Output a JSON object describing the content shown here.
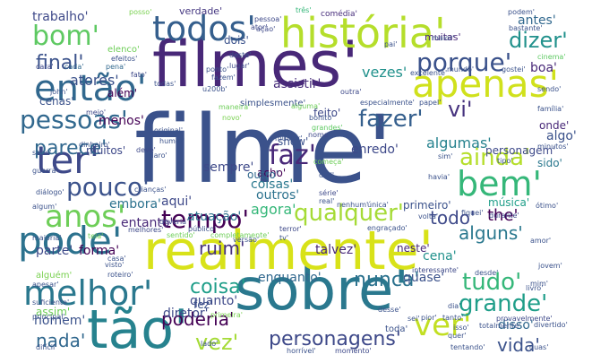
{
  "title": "",
  "words": [
    {
      "text": "filme'",
      "color": "#3b528b"
    },
    {
      "text": "filmes'",
      "color": "#482878"
    },
    {
      "text": "sobre'",
      "color": "#2a788e"
    },
    {
      "text": "realmente'",
      "color": "#d8e219"
    },
    {
      "text": "história'",
      "color": "#b5de2b"
    },
    {
      "text": "tão'",
      "color": "#26828e"
    },
    {
      "text": "apenas'",
      "color": "#d0e11c"
    },
    {
      "text": "então'",
      "color": "#31688e"
    },
    {
      "text": "pode'",
      "color": "#2c728e"
    },
    {
      "text": "ter'",
      "color": "#3e4989"
    },
    {
      "text": "todos'",
      "color": "#355f8d"
    },
    {
      "text": "bem'",
      "color": "#35b779"
    },
    {
      "text": "anos'",
      "color": "#6ece58"
    },
    {
      "text": "melhor'",
      "color": "#2a788e"
    },
    {
      "text": "pessoas'",
      "color": "#31688e"
    },
    {
      "text": "bom'",
      "color": "#5ec962"
    },
    {
      "text": "ver'",
      "color": "#c2df23"
    },
    {
      "text": "tempo'",
      "color": "#440154"
    },
    {
      "text": "qualquer'",
      "color": "#a5db36"
    },
    {
      "text": "porque'",
      "color": "#3b528b"
    },
    {
      "text": "dizer'",
      "color": "#21918c"
    },
    {
      "text": "grande'",
      "color": "#1f9e89"
    },
    {
      "text": "ainda'",
      "color": "#b5de2b"
    },
    {
      "text": "pouco'",
      "color": "#3b528b"
    },
    {
      "text": "parece'",
      "color": "#31688e"
    },
    {
      "text": "fazer'",
      "color": "#355f8d"
    },
    {
      "text": "personagens'",
      "color": "#3e4989"
    },
    {
      "text": "nunca'",
      "color": "#2c728e"
    },
    {
      "text": "tudo'",
      "color": "#35b779"
    },
    {
      "text": "coisa'",
      "color": "#1f9e89"
    },
    {
      "text": "vez'",
      "color": "#a5db36"
    },
    {
      "text": "vida'",
      "color": "#3b528b"
    },
    {
      "text": "final'",
      "color": "#3b528b"
    },
    {
      "text": "faz'",
      "color": "#482878"
    },
    {
      "text": "vi'",
      "color": "#46327e"
    },
    {
      "text": "alguns'",
      "color": "#2a788e"
    },
    {
      "text": "the'",
      "color": "#440154"
    },
    {
      "text": "todo'",
      "color": "#3e4989"
    },
    {
      "text": "poderia'",
      "color": "#440154"
    },
    {
      "text": "ruim'",
      "color": "#46327e"
    },
    {
      "text": "nada'",
      "color": "#31688e"
    },
    {
      "text": "antes'",
      "color": "#31688e"
    },
    {
      "text": "assistir'",
      "color": "#472d7b"
    },
    {
      "text": "vezes'",
      "color": "#21918c"
    },
    {
      "text": "algumas'",
      "color": "#26828e"
    },
    {
      "text": "menos'",
      "color": "#440154"
    },
    {
      "text": "atores'",
      "color": "#3b528b"
    },
    {
      "text": "trabalho'",
      "color": "#3e4989"
    },
    {
      "text": "muitas'",
      "color": "#482878"
    },
    {
      "text": "verdade'",
      "color": "#453781"
    },
    {
      "text": "sempre'",
      "color": "#3e4989"
    },
    {
      "text": "acho'",
      "color": "#440154"
    },
    {
      "text": "aqui'",
      "color": "#3e4989"
    },
    {
      "text": "embora'",
      "color": "#2c728e"
    },
    {
      "text": "agora'",
      "color": "#35b779"
    },
    {
      "text": "primeiro'",
      "color": "#3b528b"
    },
    {
      "text": "enredo'",
      "color": "#3e4989"
    },
    {
      "text": "coisas'",
      "color": "#2a788e"
    },
    {
      "text": "outros'",
      "color": "#2c728e"
    },
    {
      "text": "outro'",
      "color": "#31688e"
    },
    {
      "text": "atuação'",
      "color": "#2c728e"
    },
    {
      "text": "entanto'",
      "color": "#482878"
    },
    {
      "text": "parte'",
      "color": "#3e4989"
    },
    {
      "text": "forma'",
      "color": "#440154"
    },
    {
      "text": "talvez'",
      "color": "#482878"
    },
    {
      "text": "enquanto'",
      "color": "#31688e"
    },
    {
      "text": "quase'",
      "color": "#3b528b"
    },
    {
      "text": "cena'",
      "color": "#21918c"
    },
    {
      "text": "quanto'",
      "color": "#3e4989"
    },
    {
      "text": "diretor'",
      "color": "#3e4989"
    },
    {
      "text": "homem'",
      "color": "#3b528b"
    },
    {
      "text": "assim'",
      "color": "#6ece58"
    },
    {
      "text": "disso'",
      "color": "#31688e"
    },
    {
      "text": "música'",
      "color": "#1f9e89"
    },
    {
      "text": "personagem'",
      "color": "#3e4989"
    },
    {
      "text": "sido'",
      "color": "#2a788e"
    },
    {
      "text": "algo'",
      "color": "#3b528b"
    },
    {
      "text": "onde'",
      "color": "#482878"
    },
    {
      "text": "boa'",
      "color": "#482878"
    },
    {
      "text": "muitos'",
      "color": "#3e4989"
    },
    {
      "text": "dois'",
      "color": "#3b528b"
    },
    {
      "text": "além'",
      "color": "#440154"
    },
    {
      "text": "cenas'",
      "color": "#3b528b"
    },
    {
      "text": "show'",
      "color": "#3b528b"
    },
    {
      "text": "feito'",
      "color": "#3e4989"
    },
    {
      "text": "neste'",
      "color": "#482878"
    },
    {
      "text": "posso'",
      "color": "#7ad151"
    },
    {
      "text": "comédia'",
      "color": "#472d7b"
    },
    {
      "text": "podem'",
      "color": "#3b528b"
    },
    {
      "text": "três'",
      "color": "#35b779"
    },
    {
      "text": "elenco'",
      "color": "#6ece58"
    },
    {
      "text": "efeitos'",
      "color": "#3b528b"
    },
    {
      "text": "ator'",
      "color": "#3e4989"
    },
    {
      "text": "pessoa'",
      "color": "#3e4989"
    },
    {
      "text": "bastante'",
      "color": "#3b528b"
    },
    {
      "text": "maior'",
      "color": "#3b528b"
    },
    {
      "text": "pai'",
      "color": "#3b528b"
    },
    {
      "text": "cara'",
      "color": "#3e4989"
    },
    {
      "text": "cada'",
      "color": "#31688e"
    },
    {
      "text": "pena'",
      "color": "#31688e"
    },
    {
      "text": "deste'",
      "color": "#3b528b"
    },
    {
      "text": "lugar'",
      "color": "#3e4989"
    },
    {
      "text": "mundo'",
      "color": "#3b528b"
    },
    {
      "text": "excelente'",
      "color": "#3b528b"
    },
    {
      "text": "gostei'",
      "color": "#3b528b"
    },
    {
      "text": "cinema'",
      "color": "#5ec962"
    },
    {
      "text": "ponto'",
      "color": "#3b528b"
    },
    {
      "text": "fazem'",
      "color": "#3b528b"
    },
    {
      "text": "ação'",
      "color": "#3e4989"
    },
    {
      "text": "fato'",
      "color": "#3e4989"
    },
    {
      "text": "todas'",
      "color": "#3b528b"
    },
    {
      "text": "u200b'",
      "color": "#3b528b"
    },
    {
      "text": "john'",
      "color": "#3b528b"
    },
    {
      "text": "outra'",
      "color": "#3e4989"
    },
    {
      "text": "sendo'",
      "color": "#3b528b"
    },
    {
      "text": "simplesmente'",
      "color": "#3b528b"
    },
    {
      "text": "alguma'",
      "color": "#6ece58"
    },
    {
      "text": "especialmente'",
      "color": "#3b528b"
    },
    {
      "text": "papel'",
      "color": "#3b528b"
    },
    {
      "text": "família'",
      "color": "#3b528b"
    },
    {
      "text": "maneira'",
      "color": "#6ece58"
    },
    {
      "text": "meio'",
      "color": "#3e4989"
    },
    {
      "text": "novo'",
      "color": "#7ad151"
    },
    {
      "text": "bonito'",
      "color": "#3b528b"
    },
    {
      "text": "grandes'",
      "color": "#5ec962"
    },
    {
      "text": "nome'",
      "color": "#3e4989"
    },
    {
      "text": "minutos'",
      "color": "#3b528b"
    },
    {
      "text": "tipo'",
      "color": "#3b528b"
    },
    {
      "text": "original'",
      "color": "#3b528b"
    },
    {
      "text": "humor'",
      "color": "#3b528b"
    },
    {
      "text": "dinheiro'",
      "color": "#3b528b"
    },
    {
      "text": "claro'",
      "color": "#3b528b"
    },
    {
      "text": "começa'",
      "color": "#6ece58"
    },
    {
      "text": "sabe'",
      "color": "#3b528b"
    },
    {
      "text": "deve'",
      "color": "#3e4989"
    },
    {
      "text": "dvd'",
      "color": "#3b528b"
    },
    {
      "text": "sim'",
      "color": "#3b528b"
    },
    {
      "text": "guerra'",
      "color": "#3b528b"
    },
    {
      "text": "série'",
      "color": "#3e4989"
    },
    {
      "text": "real'",
      "color": "#3b528b"
    },
    {
      "text": "crianças'",
      "color": "#3b528b"
    },
    {
      "text": "havia'",
      "color": "#3b528b"
    },
    {
      "text": "diálogo'",
      "color": "#3b528b"
    },
    {
      "text": "deveria'",
      "color": "#3e4989"
    },
    {
      "text": "algum'",
      "color": "#3b528b"
    },
    {
      "text": "público'",
      "color": "#3b528b"
    },
    {
      "text": "terror'",
      "color": "#3e4989"
    },
    {
      "text": "nenhum'",
      "color": "#3b528b"
    },
    {
      "text": "única'",
      "color": "#3b528b"
    },
    {
      "text": "ótimo'",
      "color": "#3b528b"
    },
    {
      "text": "versão'",
      "color": "#3b528b"
    },
    {
      "text": "fiquei'",
      "color": "#3b528b"
    },
    {
      "text": "durante'",
      "color": "#3e4989"
    },
    {
      "text": "mulher'",
      "color": "#3b528b"
    },
    {
      "text": "volta'",
      "color": "#3b528b"
    },
    {
      "text": "melhores'",
      "color": "#3e4989"
    },
    {
      "text": "sentido'",
      "color": "#6ece58"
    },
    {
      "text": "completamente'",
      "color": "#6ece58"
    },
    {
      "text": "engraçado'",
      "color": "#3b528b"
    },
    {
      "text": "tv'",
      "color": "#3b528b"
    },
    {
      "text": "amor'",
      "color": "#3b528b"
    },
    {
      "text": "maioria'",
      "color": "#3b528b"
    },
    {
      "text": "tela'",
      "color": "#6ece58"
    },
    {
      "text": "casa'",
      "color": "#3b528b"
    },
    {
      "text": "visto'",
      "color": "#3b528b"
    },
    {
      "text": "jovem'",
      "color": "#3b528b"
    },
    {
      "text": "alguém'",
      "color": "#7ad151"
    },
    {
      "text": "roteiro'",
      "color": "#3b528b"
    },
    {
      "text": "interessante'",
      "color": "#3e4989"
    },
    {
      "text": "desde'",
      "color": "#3b528b"
    },
    {
      "text": "apesar'",
      "color": "#3b528b"
    },
    {
      "text": "mim'",
      "color": "#3b528b"
    },
    {
      "text": "livro'",
      "color": "#3b528b"
    },
    {
      "text": "suficiente'",
      "color": "#3b528b"
    },
    {
      "text": "primeira'",
      "color": "#7ad151"
    },
    {
      "text": "dia'",
      "color": "#3b528b"
    },
    {
      "text": "desse'",
      "color": "#3b528b"
    },
    {
      "text": "provavelmente'",
      "color": "#3e4989"
    },
    {
      "text": "principal'",
      "color": "#3b528b"
    },
    {
      "text": "sei'",
      "color": "#3b528b"
    },
    {
      "text": "pior'",
      "color": "#3b528b"
    },
    {
      "text": "tanto'",
      "color": "#3b528b"
    },
    {
      "text": "totalmente'",
      "color": "#3b528b"
    },
    {
      "text": "divertido'",
      "color": "#3b528b"
    },
    {
      "text": "isso'",
      "color": "#3b528b"
    },
    {
      "text": "quer'",
      "color": "#3b528b"
    },
    {
      "text": "difícil'",
      "color": "#3b528b"
    },
    {
      "text": "lado'",
      "color": "#3b528b"
    },
    {
      "text": "horrível'",
      "color": "#3b528b"
    },
    {
      "text": "momento'",
      "color": "#3e4989"
    },
    {
      "text": "tentando'",
      "color": "#3b528b"
    },
    {
      "text": "duas'",
      "color": "#3b528b"
    },
    {
      "text": "fez'",
      "color": "#3b528b"
    },
    {
      "text": "toda'",
      "color": "#3b528b"
    }
  ]
}
